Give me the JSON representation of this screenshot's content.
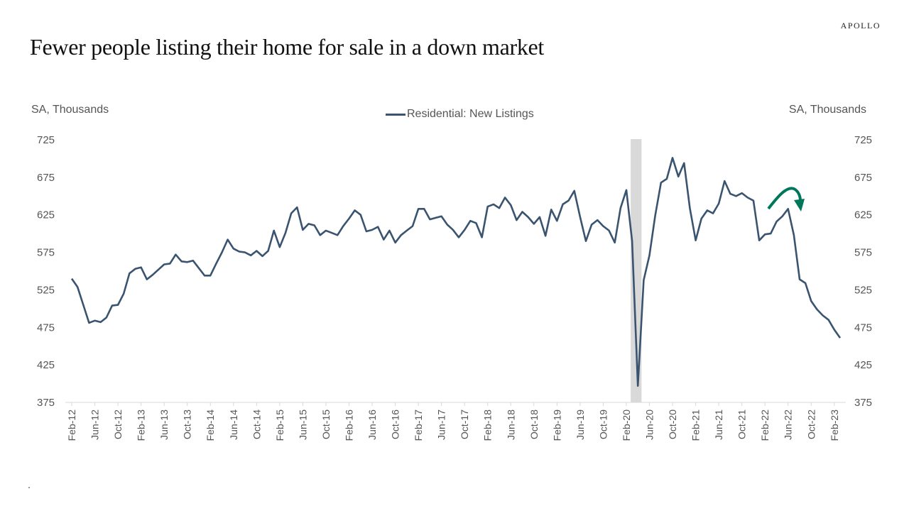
{
  "brand": "APOLLO",
  "title": "Fewer people listing their home for sale in a down market",
  "chart_data": {
    "type": "line",
    "title": "Fewer people listing their home for sale in a down market",
    "ylabel_left": "SA, Thousands",
    "ylabel_right": "SA, Thousands",
    "ylim": [
      375,
      725
    ],
    "yticks": [
      375,
      425,
      475,
      525,
      575,
      625,
      675,
      725
    ],
    "grid": false,
    "legend_position": "top-center",
    "x_start": "Feb-12",
    "x_end": "Mar-23",
    "xtick_labels": [
      "Feb-12",
      "Jun-12",
      "Oct-12",
      "Feb-13",
      "Jun-13",
      "Oct-13",
      "Feb-14",
      "Jun-14",
      "Oct-14",
      "Feb-15",
      "Jun-15",
      "Oct-15",
      "Feb-16",
      "Jun-16",
      "Oct-16",
      "Feb-17",
      "Jun-17",
      "Oct-17",
      "Feb-18",
      "Jun-18",
      "Oct-18",
      "Feb-19",
      "Jun-19",
      "Oct-19",
      "Feb-20",
      "Jun-20",
      "Oct-20",
      "Feb-21",
      "Jun-21",
      "Oct-21",
      "Feb-22",
      "Jun-22",
      "Oct-22",
      "Feb-23"
    ],
    "recession_shading": {
      "start": "Mar-20",
      "end": "Apr-20",
      "color": "#d9d9d9"
    },
    "annotation": {
      "type": "curved-arrow",
      "color": "#00775a",
      "near": "Jun-22",
      "meaning": "peak then decline"
    },
    "series": [
      {
        "name": "Residential: New Listings",
        "color": "#3a5470",
        "values": [
          540,
          529,
          505,
          481,
          484,
          482,
          488,
          504,
          505,
          520,
          547,
          553,
          555,
          539,
          545,
          552,
          559,
          560,
          572,
          563,
          562,
          564,
          554,
          544,
          544,
          560,
          575,
          592,
          580,
          576,
          575,
          571,
          577,
          570,
          577,
          604,
          582,
          601,
          627,
          635,
          605,
          613,
          611,
          598,
          604,
          601,
          598,
          610,
          620,
          631,
          625,
          603,
          605,
          609,
          592,
          604,
          588,
          598,
          604,
          610,
          633,
          633,
          619,
          621,
          623,
          612,
          605,
          595,
          605,
          617,
          614,
          595,
          636,
          639,
          634,
          648,
          638,
          618,
          629,
          622,
          613,
          622,
          597,
          632,
          617,
          639,
          644,
          657,
          622,
          590,
          612,
          618,
          610,
          604,
          588,
          634,
          658,
          590,
          397,
          538,
          571,
          624,
          668,
          673,
          701,
          676,
          694,
          634,
          591,
          620,
          631,
          627,
          640,
          670,
          653,
          650,
          654,
          648,
          644,
          591,
          599,
          600,
          616,
          623,
          633,
          598,
          539,
          534,
          510,
          499,
          491,
          485,
          472,
          461
        ]
      }
    ]
  },
  "legend": {
    "label": "Residential: New Listings"
  }
}
